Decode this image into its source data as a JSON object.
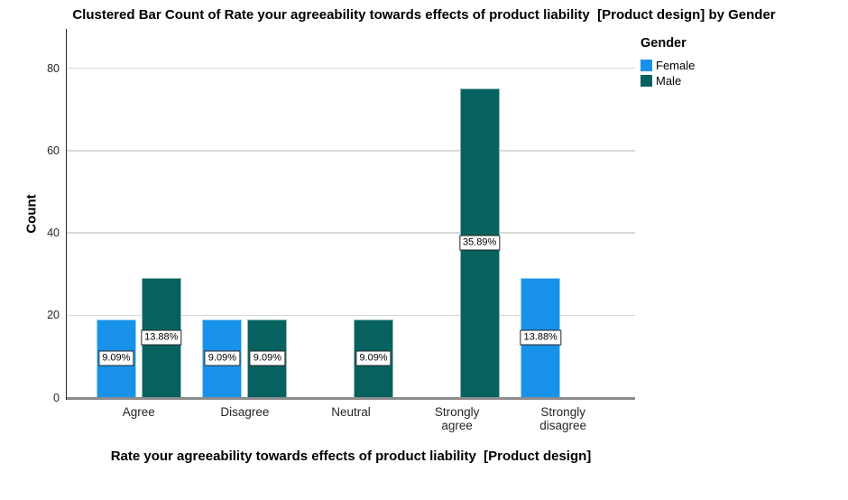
{
  "chart_data": {
    "type": "bar",
    "title": "Clustered Bar Count of Rate your agreeability towards effects of product liability  [Product design] by Gender",
    "xlabel": "Rate your agreeability towards effects of product liability  [Product design]",
    "ylabel": "Count",
    "categories": [
      "Agree",
      "Disagree",
      "Neutral",
      "Strongly agree",
      "Strongly disagree"
    ],
    "category_display": [
      "Agree",
      "Disagree",
      "Neutral",
      "Strongly\nagree",
      "Strongly\ndisagree"
    ],
    "series": [
      {
        "name": "Female",
        "color": "#1792E8",
        "values": [
          19,
          19,
          0,
          0,
          29
        ],
        "percent_labels": [
          "9.09%",
          "9.09%",
          "",
          "",
          "13.88%"
        ]
      },
      {
        "name": "Male",
        "color": "#07625F",
        "values": [
          29,
          19,
          19,
          75,
          0
        ],
        "percent_labels": [
          "13.88%",
          "9.09%",
          "9.09%",
          "35.89%",
          ""
        ]
      }
    ],
    "yticks": [
      0,
      20,
      40,
      60,
      80
    ],
    "ylim": [
      0,
      89
    ],
    "grid": true,
    "legend_position": "top-right",
    "colors": {
      "female": "#1792E8",
      "male": "#07625F",
      "gridline": "#D9D9D9",
      "x_axis_line": "#8C8C8C",
      "y_axis_line": "#262626"
    }
  },
  "legend": {
    "title": "Gender",
    "items": [
      {
        "label": "Female",
        "color": "#1792E8"
      },
      {
        "label": "Male",
        "color": "#07625F"
      }
    ]
  }
}
